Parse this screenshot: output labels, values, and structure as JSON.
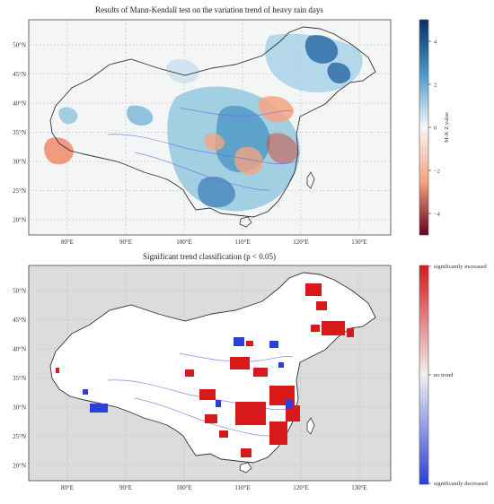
{
  "panels": [
    {
      "title": "Results of Mann-Kendall test on the variation trend of heavy rain days",
      "lat_labels": [
        "50°N",
        "45°N",
        "40°N",
        "35°N",
        "30°N",
        "25°N",
        "20°N"
      ],
      "lon_labels": [
        "80°E",
        "90°E",
        "100°E",
        "110°E",
        "120°E",
        "130°E"
      ],
      "colorbar": {
        "label": "M-K Z value",
        "ticks": [
          "4",
          "2",
          "0",
          "−2",
          "−4"
        ],
        "range": [
          -5,
          5
        ],
        "colors": [
          "#08306b",
          "#4a98c9",
          "#f7f7f7",
          "#f4a582",
          "#67001f"
        ]
      }
    },
    {
      "title": "Significant trend classification (p < 0.05)",
      "lat_labels": [
        "50°N",
        "45°N",
        "40°N",
        "35°N",
        "30°N",
        "25°N",
        "20°N"
      ],
      "lon_labels": [
        "80°E",
        "90°E",
        "100°E",
        "110°E",
        "120°E",
        "130°E"
      ],
      "colorbar": {
        "ticks": [
          "significantly increased",
          "no trend",
          "significantly decreased"
        ],
        "colors": [
          "#d7191c",
          "#f0f0f0",
          "#2c3fd6"
        ]
      }
    }
  ],
  "colors": {
    "map_background_top": "#f3f6f4",
    "map_background_bottom": "#dcdcdc",
    "border": "#333333",
    "river": "#6a6ae8",
    "increase": "#d7191c",
    "decrease": "#2c3fd6"
  }
}
